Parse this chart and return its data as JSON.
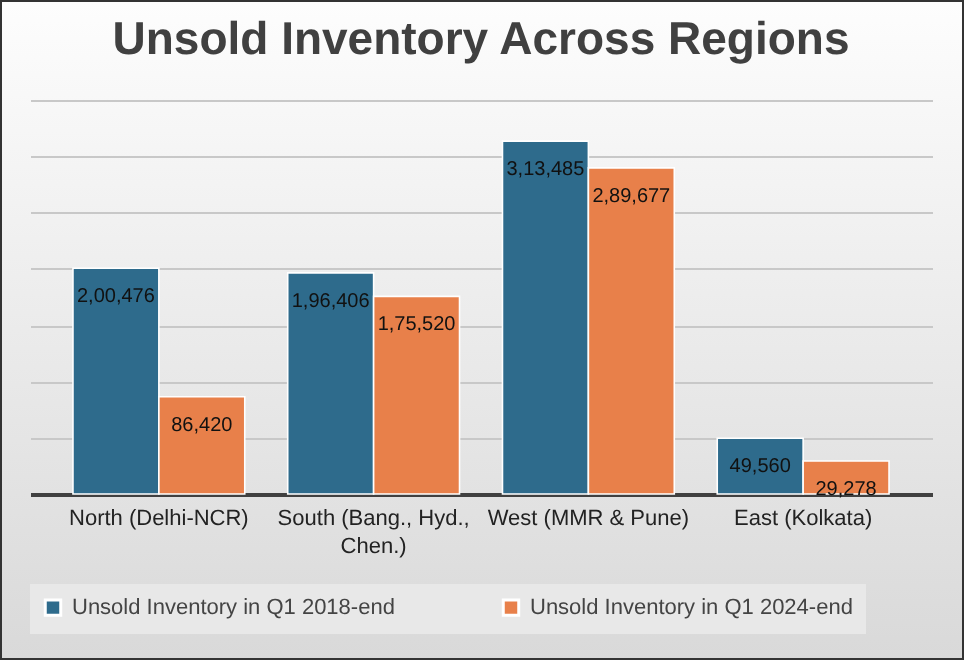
{
  "chart_data": {
    "type": "bar",
    "title": "Unsold Inventory Across Regions",
    "categories": [
      "North (Delhi-NCR)",
      "South (Bang., Hyd., Chen.)",
      "West (MMR & Pune)",
      "East (Kolkata)"
    ],
    "series": [
      {
        "name": "Unsold Inventory in Q1 2018-end",
        "color": "#2e6b8c",
        "values": [
          200476,
          196406,
          313485,
          49560
        ],
        "value_labels": [
          "2,00,476",
          "1,96,406",
          "3,13,485",
          "49,560"
        ]
      },
      {
        "name": "Unsold Inventory in Q1 2024-end",
        "color": "#e8804a",
        "values": [
          86420,
          175520,
          289677,
          29278
        ],
        "value_labels": [
          "86,420",
          "1,75,520",
          "2,89,677",
          "29,278"
        ]
      }
    ],
    "tick_labels": "x",
    "grid": "y",
    "legend": "bottom"
  }
}
